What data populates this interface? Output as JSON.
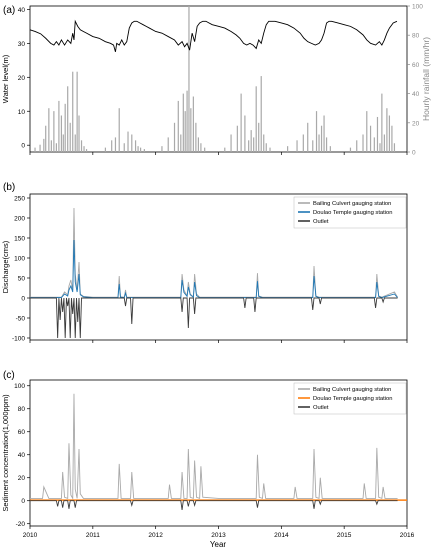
{
  "figure": {
    "xlabel": "Year"
  },
  "x_ticks": [
    "2010",
    "2011",
    "2012",
    "2013",
    "2014",
    "2015",
    "2016"
  ],
  "chart_data": [
    {
      "panel": "(a)",
      "type": "line",
      "x_range": [
        2010,
        2016
      ],
      "ylabel": "Water level(m)",
      "ylim": [
        -2,
        41
      ],
      "y_ticks": [
        0,
        10,
        20,
        30,
        40
      ],
      "y2label": "Hourly rainfall (mm/hr)",
      "y2lim": [
        0,
        100
      ],
      "y2_ticks": [
        0,
        20,
        40,
        60,
        80,
        100
      ],
      "series": [
        {
          "type": "line",
          "color": "#000000",
          "x": [
            2010.0,
            2010.08,
            2010.17,
            2010.25,
            2010.33,
            2010.38,
            2010.42,
            2010.46,
            2010.5,
            2010.55,
            2010.6,
            2010.65,
            2010.68,
            2010.7,
            2010.72,
            2010.76,
            2010.8,
            2010.85,
            2010.9,
            2011.0,
            2011.1,
            2011.2,
            2011.28,
            2011.33,
            2011.36,
            2011.38,
            2011.42,
            2011.46,
            2011.5,
            2011.54,
            2011.58,
            2011.62,
            2011.66,
            2011.7,
            2011.75,
            2011.8,
            2011.85,
            2011.9,
            2012.0,
            2012.1,
            2012.2,
            2012.3,
            2012.36,
            2012.42,
            2012.46,
            2012.5,
            2012.54,
            2012.58,
            2012.62,
            2012.66,
            2012.7,
            2012.75,
            2012.8,
            2012.85,
            2012.9,
            2013.0,
            2013.1,
            2013.2,
            2013.28,
            2013.34,
            2013.4,
            2013.45,
            2013.5,
            2013.55,
            2013.6,
            2013.64,
            2013.68,
            2013.72,
            2013.76,
            2013.8,
            2013.9,
            2014.0,
            2014.1,
            2014.2,
            2014.3,
            2014.36,
            2014.42,
            2014.48,
            2014.54,
            2014.6,
            2014.64,
            2014.68,
            2014.72,
            2014.76,
            2014.8,
            2014.9,
            2015.0,
            2015.1,
            2015.2,
            2015.3,
            2015.36,
            2015.42,
            2015.5,
            2015.56,
            2015.6,
            2015.64,
            2015.68,
            2015.72,
            2015.78,
            2015.84
          ],
          "y": [
            34,
            33.5,
            32.8,
            31.5,
            30,
            29.5,
            30.5,
            29.5,
            31,
            29.5,
            31,
            30,
            33,
            31,
            36.5,
            35,
            34,
            33.5,
            33,
            32,
            31.5,
            30.5,
            30,
            29.5,
            27.5,
            30,
            29.5,
            31,
            29.5,
            30.5,
            34.5,
            36,
            36.5,
            36.5,
            36,
            35.5,
            35,
            34.5,
            33.5,
            33,
            32,
            31,
            29.5,
            30.5,
            29,
            30,
            28,
            33,
            30.5,
            35,
            36,
            36.5,
            36.5,
            36,
            35.5,
            35,
            34.5,
            33.5,
            32.5,
            31.5,
            30,
            29.5,
            30,
            29.5,
            28.5,
            31,
            30,
            33,
            35.5,
            36.5,
            36.5,
            36,
            35.5,
            34.5,
            33,
            31.5,
            30.5,
            30,
            29.5,
            30,
            31,
            33,
            36,
            36.5,
            36.5,
            36,
            35.5,
            35,
            34,
            32.5,
            31,
            30,
            29.5,
            30.5,
            29.5,
            31,
            33,
            34.5,
            36,
            36.5
          ]
        },
        {
          "type": "bar",
          "axis": "right",
          "name": "Hourly rainfall",
          "color": "#a9a9a9",
          "x": [
            2010.08,
            2010.16,
            2010.22,
            2010.25,
            2010.3,
            2010.34,
            2010.38,
            2010.42,
            2010.46,
            2010.5,
            2010.53,
            2010.56,
            2010.6,
            2010.64,
            2010.68,
            2010.72,
            2010.75,
            2010.78,
            2010.82,
            2010.86,
            2010.9,
            2011.2,
            2011.3,
            2011.36,
            2011.42,
            2011.5,
            2011.56,
            2011.62,
            2011.68,
            2011.72,
            2011.76,
            2011.82,
            2012.1,
            2012.2,
            2012.3,
            2012.36,
            2012.4,
            2012.44,
            2012.47,
            2012.5,
            2012.53,
            2012.56,
            2012.6,
            2012.64,
            2012.68,
            2012.72,
            2012.78,
            2013.1,
            2013.2,
            2013.3,
            2013.36,
            2013.42,
            2013.48,
            2013.52,
            2013.56,
            2013.6,
            2013.64,
            2013.68,
            2013.72,
            2013.76,
            2013.82,
            2014.1,
            2014.25,
            2014.35,
            2014.42,
            2014.5,
            2014.56,
            2014.6,
            2014.64,
            2014.68,
            2014.72,
            2014.78,
            2015.1,
            2015.2,
            2015.3,
            2015.36,
            2015.42,
            2015.48,
            2015.53,
            2015.57,
            2015.6,
            2015.64,
            2015.68,
            2015.72,
            2015.76,
            2015.8
          ],
          "y": [
            3,
            5,
            9,
            18,
            30,
            8,
            28,
            6,
            35,
            25,
            12,
            33,
            45,
            20,
            55,
            12,
            55,
            25,
            8,
            4,
            2,
            3,
            8,
            10,
            30,
            6,
            14,
            12,
            8,
            4,
            3,
            2,
            4,
            10,
            20,
            35,
            12,
            40,
            28,
            42,
            100,
            30,
            38,
            20,
            10,
            6,
            3,
            3,
            12,
            18,
            40,
            25,
            8,
            15,
            10,
            45,
            20,
            52,
            12,
            6,
            3,
            4,
            8,
            12,
            20,
            8,
            28,
            12,
            18,
            25,
            10,
            4,
            3,
            8,
            12,
            28,
            18,
            10,
            24,
            6,
            40,
            12,
            30,
            25,
            18,
            6
          ]
        }
      ]
    },
    {
      "panel": "(b)",
      "type": "line",
      "x_range": [
        2010,
        2016
      ],
      "ylabel": "Discharge(cms)",
      "ylim": [
        -105,
        260
      ],
      "y_ticks": [
        -100,
        -50,
        0,
        50,
        100,
        150,
        200,
        250
      ],
      "legend": "top-right",
      "series": [
        {
          "name": "Bailing Culvert gauging station",
          "color": "#a9a9a9",
          "x": [
            2010.0,
            2010.5,
            2010.55,
            2010.6,
            2010.62,
            2010.65,
            2010.68,
            2010.7,
            2010.72,
            2010.75,
            2010.78,
            2010.8,
            2010.85,
            2011.0,
            2011.4,
            2011.42,
            2011.44,
            2011.5,
            2011.52,
            2011.54,
            2012.0,
            2012.4,
            2012.42,
            2012.45,
            2012.5,
            2012.52,
            2012.55,
            2012.6,
            2012.62,
            2012.65,
            2012.7,
            2013.0,
            2013.6,
            2013.62,
            2013.64,
            2013.7,
            2014.0,
            2014.5,
            2014.52,
            2014.55,
            2014.6,
            2015.0,
            2015.5,
            2015.52,
            2015.55,
            2015.6,
            2015.8,
            2015.85
          ],
          "y": [
            2,
            2,
            15,
            8,
            30,
            45,
            20,
            225,
            60,
            20,
            90,
            10,
            4,
            2,
            2,
            55,
            3,
            2,
            20,
            2,
            2,
            2,
            60,
            20,
            5,
            40,
            10,
            3,
            60,
            10,
            2,
            2,
            2,
            62,
            5,
            2,
            2,
            2,
            80,
            5,
            2,
            2,
            2,
            60,
            5,
            2,
            15,
            2
          ]
        },
        {
          "name": "Doulao Temple gauging station",
          "color": "#1f77b4",
          "x": [
            2010.0,
            2010.5,
            2010.55,
            2010.6,
            2010.62,
            2010.65,
            2010.68,
            2010.7,
            2010.72,
            2010.75,
            2010.78,
            2010.8,
            2010.85,
            2011.0,
            2011.4,
            2011.42,
            2011.44,
            2011.5,
            2011.52,
            2011.54,
            2012.0,
            2012.4,
            2012.42,
            2012.45,
            2012.5,
            2012.52,
            2012.55,
            2012.6,
            2012.62,
            2012.65,
            2012.7,
            2013.0,
            2013.6,
            2013.62,
            2013.64,
            2013.7,
            2014.0,
            2014.5,
            2014.52,
            2014.55,
            2014.6,
            2015.0,
            2015.5,
            2015.52,
            2015.55,
            2015.6,
            2015.8,
            2015.85
          ],
          "y": [
            1,
            1,
            10,
            5,
            20,
            30,
            15,
            145,
            40,
            15,
            60,
            8,
            3,
            1,
            1,
            35,
            2,
            1,
            12,
            1,
            1,
            1,
            45,
            14,
            4,
            28,
            8,
            2,
            40,
            6,
            1,
            1,
            1,
            42,
            4,
            1,
            1,
            1,
            55,
            4,
            1,
            1,
            1,
            40,
            4,
            1,
            10,
            1
          ]
        },
        {
          "name": "Outlet",
          "color": "#3a3a3a",
          "x": [
            2010.0,
            2010.42,
            2010.44,
            2010.46,
            2010.48,
            2010.5,
            2010.52,
            2010.54,
            2010.56,
            2010.58,
            2010.6,
            2010.62,
            2010.64,
            2010.66,
            2010.68,
            2010.7,
            2010.72,
            2010.74,
            2010.76,
            2010.78,
            2010.8,
            2010.82,
            2011.0,
            2011.5,
            2011.52,
            2011.54,
            2011.6,
            2011.62,
            2011.64,
            2011.7,
            2012.0,
            2012.4,
            2012.42,
            2012.44,
            2012.5,
            2012.52,
            2012.54,
            2012.6,
            2012.62,
            2012.64,
            2013.0,
            2013.4,
            2013.42,
            2013.44,
            2013.56,
            2013.58,
            2013.6,
            2014.0,
            2014.48,
            2014.5,
            2014.52,
            2014.6,
            2014.62,
            2014.64,
            2015.0,
            2015.48,
            2015.5,
            2015.52,
            2015.6,
            2015.62,
            2015.64,
            2015.85
          ],
          "y": [
            0,
            0,
            -100,
            0,
            -55,
            0,
            -35,
            0,
            -100,
            0,
            -20,
            0,
            -100,
            0,
            -40,
            0,
            -100,
            0,
            -60,
            0,
            -100,
            0,
            0,
            0,
            -20,
            0,
            0,
            -65,
            0,
            0,
            0,
            0,
            -35,
            0,
            0,
            -75,
            0,
            0,
            -40,
            0,
            0,
            0,
            -25,
            0,
            0,
            -35,
            0,
            0,
            0,
            -30,
            0,
            0,
            -15,
            0,
            0,
            0,
            -25,
            0,
            0,
            -10,
            0,
            0
          ]
        }
      ]
    },
    {
      "panel": "(c)",
      "type": "line",
      "x_range": [
        2010,
        2016
      ],
      "ylabel": "Sediment concentration(1,000ppm)",
      "ylim": [
        -22,
        105
      ],
      "y_ticks": [
        -20,
        0,
        20,
        40,
        60,
        80,
        100
      ],
      "legend": "top-right",
      "series": [
        {
          "name": "Bailing Culvert gauging station",
          "color": "#a9a9a9",
          "x": [
            2010.0,
            2010.2,
            2010.22,
            2010.3,
            2010.5,
            2010.52,
            2010.55,
            2010.6,
            2010.62,
            2010.65,
            2010.68,
            2010.7,
            2010.72,
            2010.75,
            2010.78,
            2010.8,
            2010.85,
            2011.0,
            2011.4,
            2011.42,
            2011.45,
            2011.6,
            2011.62,
            2011.65,
            2012.0,
            2012.2,
            2012.22,
            2012.25,
            2012.4,
            2012.42,
            2012.45,
            2012.5,
            2012.52,
            2012.55,
            2012.6,
            2012.62,
            2012.65,
            2012.7,
            2012.72,
            2012.75,
            2013.0,
            2013.6,
            2013.62,
            2013.65,
            2013.7,
            2013.72,
            2013.75,
            2014.0,
            2014.2,
            2014.22,
            2014.25,
            2014.5,
            2014.52,
            2014.55,
            2014.6,
            2014.62,
            2014.65,
            2015.0,
            2015.3,
            2015.32,
            2015.35,
            2015.5,
            2015.52,
            2015.55,
            2015.6,
            2015.62,
            2015.65,
            2015.85
          ],
          "y": [
            2,
            2,
            12,
            2,
            2,
            25,
            3,
            2,
            50,
            5,
            2,
            93,
            10,
            2,
            45,
            6,
            2,
            2,
            2,
            32,
            2,
            2,
            25,
            2,
            2,
            2,
            14,
            2,
            2,
            25,
            2,
            2,
            45,
            3,
            2,
            35,
            3,
            2,
            30,
            3,
            2,
            2,
            40,
            3,
            2,
            15,
            2,
            2,
            2,
            12,
            2,
            2,
            45,
            3,
            2,
            20,
            2,
            2,
            2,
            15,
            2,
            2,
            46,
            3,
            2,
            12,
            2,
            2
          ]
        },
        {
          "name": "Doulao Temple gauging station",
          "color": "#ff7f0e",
          "x": [
            2010.0,
            2016.0
          ],
          "y": [
            0.5,
            0.5
          ]
        },
        {
          "name": "Outlet",
          "color": "#3a3a3a",
          "x": [
            2010.0,
            2010.42,
            2010.44,
            2010.46,
            2010.5,
            2010.52,
            2010.54,
            2010.6,
            2010.62,
            2010.64,
            2010.7,
            2010.72,
            2010.74,
            2011.0,
            2011.6,
            2011.62,
            2011.64,
            2012.0,
            2012.4,
            2012.42,
            2012.44,
            2012.5,
            2012.52,
            2012.54,
            2012.6,
            2012.62,
            2012.64,
            2013.0,
            2013.6,
            2013.62,
            2013.64,
            2014.0,
            2014.5,
            2014.52,
            2014.54,
            2014.6,
            2014.62,
            2014.64,
            2015.0,
            2015.5,
            2015.52,
            2015.54,
            2015.85
          ],
          "y": [
            0,
            0,
            -5,
            0,
            0,
            -6,
            0,
            0,
            -7,
            0,
            0,
            -6,
            0,
            0,
            0,
            -4,
            0,
            0,
            0,
            -8,
            0,
            0,
            -5,
            0,
            0,
            -4,
            0,
            0,
            0,
            -6,
            0,
            0,
            0,
            -7,
            0,
            0,
            -3,
            0,
            0,
            0,
            -3,
            0,
            0
          ]
        }
      ]
    }
  ]
}
